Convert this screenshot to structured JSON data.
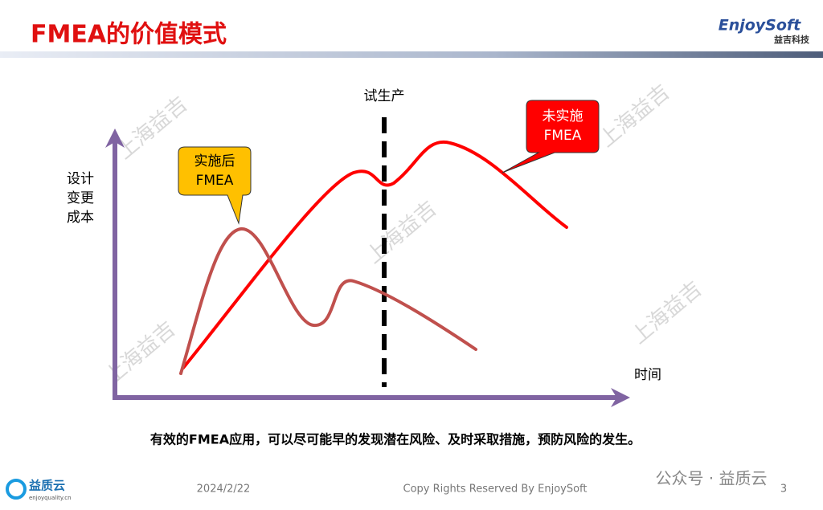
{
  "header": {
    "title": "FMEA的价值模式",
    "logo_name": "EnjoySoft",
    "logo_subtitle": "益吉科技"
  },
  "diagram": {
    "y_axis_label": [
      "设计",
      "变更",
      "成本"
    ],
    "x_axis_label": "时间",
    "marker_label": "试生产",
    "callout_after": [
      "实施后",
      "FMEA"
    ],
    "callout_before": [
      "未实施",
      "FMEA"
    ],
    "watermarks": [
      "上海益吉",
      "上海益吉",
      "上海益吉",
      "上海益吉",
      "上海益吉"
    ]
  },
  "caption": "有效的FMEA应用，可以尽可能早的发现潜在风险、及时采取措施，预防风险的发生。",
  "footer": {
    "brand": "益质云",
    "brand_url": "enjoyquality.cn",
    "date": "2024/2/22",
    "copyright": "Copy Rights Reserved By EnjoySoft",
    "page": "3",
    "wechat": "公众号 · 益质云"
  }
}
